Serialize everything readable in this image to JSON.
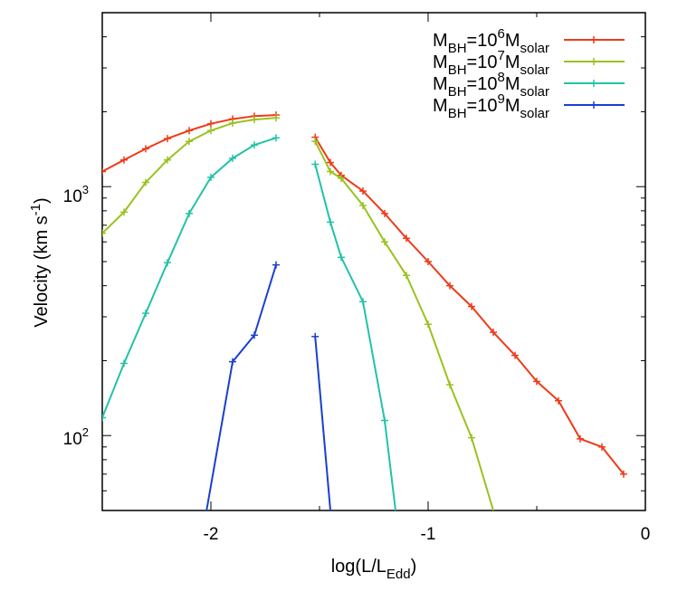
{
  "chart_data": {
    "type": "line",
    "title": "",
    "xlabel": {
      "main": "log(L/L",
      "sub": "Edd",
      "tail": ")"
    },
    "ylabel": {
      "main": "Velocity (km s",
      "sup": "-1",
      "tail": ")"
    },
    "xlim": [
      -2.5,
      0
    ],
    "ylim": [
      50,
      5000
    ],
    "yscale": "log",
    "xticks": [
      -2,
      -1,
      0
    ],
    "xtick_labels": [
      "-2",
      "-1",
      "0"
    ],
    "yticks_major": [
      100,
      1000
    ],
    "ytick_labels": [
      {
        "base": "10",
        "exp": "2"
      },
      {
        "base": "10",
        "exp": "3"
      }
    ],
    "grid": false,
    "legend_position": "top-right",
    "series": [
      {
        "name": "M_BH=10^6 M_solar",
        "legend": {
          "a": "M",
          "a_sub": "BH",
          "b": "=10",
          "b_sup": "6",
          "c": "M",
          "c_sub": "solar"
        },
        "color": "#ee3a1a",
        "segments": [
          [
            [
              -2.5,
              1150
            ],
            [
              -2.4,
              1280
            ],
            [
              -2.3,
              1420
            ],
            [
              -2.2,
              1560
            ],
            [
              -2.1,
              1680
            ],
            [
              -2.0,
              1790
            ],
            [
              -1.9,
              1870
            ],
            [
              -1.8,
              1920
            ],
            [
              -1.7,
              1940
            ]
          ],
          [
            [
              -1.52,
              1580
            ],
            [
              -1.45,
              1250
            ],
            [
              -1.4,
              1110
            ],
            [
              -1.3,
              960
            ],
            [
              -1.2,
              780
            ],
            [
              -1.1,
              620
            ],
            [
              -1.0,
              500
            ],
            [
              -0.9,
              400
            ],
            [
              -0.8,
              330
            ],
            [
              -0.7,
              260
            ],
            [
              -0.6,
              210
            ],
            [
              -0.5,
              165
            ],
            [
              -0.4,
              138
            ],
            [
              -0.3,
              97
            ],
            [
              -0.2,
              90
            ],
            [
              -0.1,
              70
            ]
          ]
        ]
      },
      {
        "name": "M_BH=10^7 M_solar",
        "legend": {
          "a": "M",
          "a_sub": "BH",
          "b": "=10",
          "b_sup": "7",
          "c": "M",
          "c_sub": "solar"
        },
        "color": "#99c21f",
        "segments": [
          [
            [
              -2.5,
              650
            ],
            [
              -2.4,
              790
            ],
            [
              -2.3,
              1040
            ],
            [
              -2.2,
              1280
            ],
            [
              -2.1,
              1520
            ],
            [
              -2.0,
              1680
            ],
            [
              -1.9,
              1800
            ],
            [
              -1.8,
              1860
            ],
            [
              -1.7,
              1890
            ]
          ],
          [
            [
              -1.52,
              1520
            ],
            [
              -1.45,
              1150
            ],
            [
              -1.4,
              1080
            ],
            [
              -1.3,
              840
            ],
            [
              -1.2,
              600
            ],
            [
              -1.1,
              440
            ],
            [
              -1.0,
              280
            ],
            [
              -0.9,
              160
            ],
            [
              -0.8,
              98
            ],
            [
              -0.7,
              50
            ]
          ]
        ]
      },
      {
        "name": "M_BH=10^8 M_solar",
        "legend": {
          "a": "M",
          "a_sub": "BH",
          "b": "=10",
          "b_sup": "8",
          "c": "M",
          "c_sub": "solar"
        },
        "color": "#22c2a8",
        "segments": [
          [
            [
              -2.5,
              118
            ],
            [
              -2.4,
              195
            ],
            [
              -2.3,
              310
            ],
            [
              -2.2,
              495
            ],
            [
              -2.1,
              780
            ],
            [
              -2.0,
              1090
            ],
            [
              -1.9,
              1300
            ],
            [
              -1.8,
              1470
            ],
            [
              -1.7,
              1570
            ]
          ],
          [
            [
              -1.52,
              1230
            ],
            [
              -1.45,
              720
            ],
            [
              -1.4,
              520
            ],
            [
              -1.3,
              345
            ],
            [
              -1.2,
              115
            ],
            [
              -1.15,
              50
            ]
          ]
        ]
      },
      {
        "name": "M_BH=10^9 M_solar",
        "legend": {
          "a": "M",
          "a_sub": "BH",
          "b": "=10",
          "b_sup": "9",
          "c": "M",
          "c_sub": "solar"
        },
        "color": "#1a3fd0",
        "segments": [
          [
            [
              -2.02,
              50
            ],
            [
              -1.9,
              198
            ],
            [
              -1.8,
              253
            ],
            [
              -1.7,
              485
            ]
          ],
          [
            [
              -1.52,
              250
            ],
            [
              -1.45,
              50
            ]
          ]
        ]
      }
    ]
  }
}
